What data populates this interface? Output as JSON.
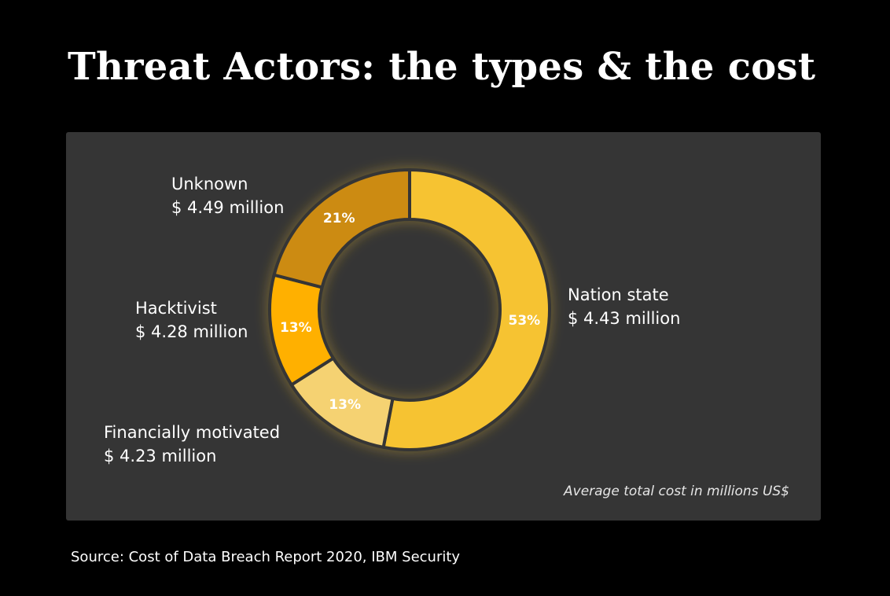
{
  "title": "Threat Actors: the types & the cost",
  "source": "Source: Cost of Data Breach Report 2020, IBM Security",
  "chart_data": {
    "type": "pie",
    "subtype": "donut",
    "note": "Average total cost in millions US$",
    "slices": [
      {
        "name": "Nation state",
        "cost": "$ 4.43 million",
        "share": 53,
        "label": "53%",
        "color": "#f6c332"
      },
      {
        "name": "Financially motivated",
        "cost": "$ 4.23 million",
        "share": 13,
        "label": "13%",
        "color": "#f5d272"
      },
      {
        "name": "Hacktivist",
        "cost": "$ 4.28 million",
        "share": 13,
        "label": "13%",
        "color": "#ffb000"
      },
      {
        "name": "Unknown",
        "cost": "$ 4.49 million",
        "share": 21,
        "label": "21%",
        "color": "#cc8b12"
      }
    ]
  }
}
